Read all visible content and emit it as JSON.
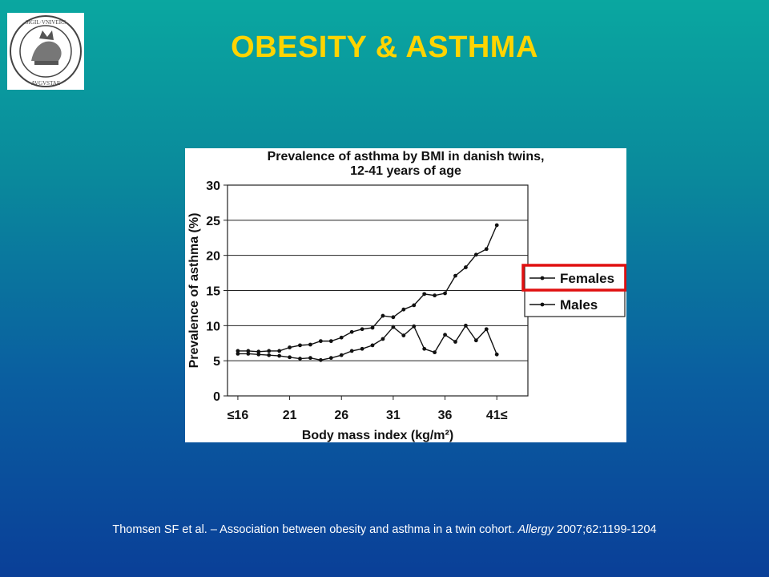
{
  "slide": {
    "title": "OBESITY & ASTHMA",
    "logo_text": "TAVRINORVM • SIGIL • VNIVERS • AVGVSTAE",
    "citation_pre": "Thomsen SF et al. – Association between obesity and asthma in a twin cohort. ",
    "citation_journal": "Allergy",
    "citation_post": "  2007;62:1199-1204"
  },
  "chart_data": {
    "type": "line",
    "title_line1": "Prevalence of asthma by BMI in danish twins,",
    "title_line2": "12-41 years of age",
    "xlabel": "Body mass index (kg/m²)",
    "ylabel": "Prevalence of asthma (%)",
    "x_tick_labels": [
      "≤16",
      "21",
      "26",
      "31",
      "36",
      "41≤"
    ],
    "x_tick_values": [
      16,
      21,
      26,
      31,
      36,
      41
    ],
    "y_ticks": [
      0,
      5,
      10,
      15,
      20,
      25,
      30
    ],
    "ylim": [
      0,
      30
    ],
    "xlim": [
      15,
      44
    ],
    "grid": "horizontal",
    "legend_position": "right",
    "highlighted_series": "Females",
    "x": [
      16,
      17,
      18,
      19,
      20,
      21,
      22,
      23,
      24,
      25,
      26,
      27,
      28,
      29,
      30,
      31,
      32,
      33,
      34,
      35,
      36,
      37,
      38,
      39,
      40,
      41
    ],
    "series": [
      {
        "name": "Females",
        "values": [
          6.4,
          6.4,
          6.3,
          6.4,
          6.4,
          6.9,
          7.2,
          7.3,
          7.8,
          7.8,
          8.3,
          9.1,
          9.5,
          9.7,
          11.4,
          11.2,
          12.3,
          12.9,
          14.5,
          14.3,
          14.6,
          17.1,
          18.3,
          20.1,
          20.9,
          24.3
        ]
      },
      {
        "name": "Males",
        "values": [
          6.0,
          6.0,
          5.9,
          5.8,
          5.7,
          5.5,
          5.3,
          5.4,
          5.1,
          5.4,
          5.8,
          6.4,
          6.7,
          7.2,
          8.1,
          9.8,
          8.6,
          9.9,
          6.7,
          6.2,
          8.7,
          7.7,
          10.0,
          7.9,
          9.5,
          5.9
        ]
      }
    ]
  }
}
